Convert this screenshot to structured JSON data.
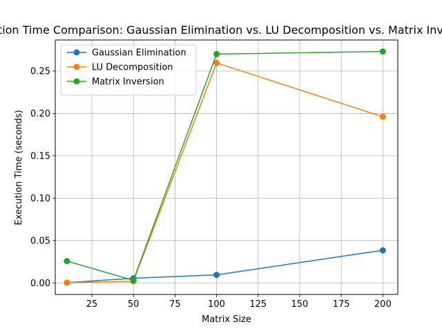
{
  "chart_data": {
    "type": "line",
    "title": "Execution Time Comparison: Gaussian Elimination vs. LU Decomposition vs. Matrix Inversion",
    "xlabel": "Matrix Size",
    "ylabel": "Execution Time (seconds)",
    "x": [
      10,
      50,
      100,
      200
    ],
    "xlim": [
      3,
      209
    ],
    "ylim": [
      -0.0136,
      0.2866
    ],
    "xticks": [
      25,
      50,
      75,
      100,
      125,
      150,
      175,
      200
    ],
    "yticks": [
      0.0,
      0.05,
      0.1,
      0.15,
      0.2,
      0.25
    ],
    "ytick_labels": [
      "0.00",
      "0.05",
      "0.10",
      "0.15",
      "0.20",
      "0.25"
    ],
    "grid": true,
    "legend_position": "upper-left",
    "series": [
      {
        "name": "Gaussian Elimination",
        "color": "#1f77b4",
        "values": [
          0.0003,
          0.0055,
          0.0095,
          0.0385
        ]
      },
      {
        "name": "LU Decomposition",
        "color": "#ff7f0e",
        "values": [
          0.0003,
          0.002,
          0.2595,
          0.196
        ]
      },
      {
        "name": "Matrix Inversion",
        "color": "#2ca02c",
        "values": [
          0.0258,
          0.003,
          0.27,
          0.273
        ]
      }
    ]
  }
}
